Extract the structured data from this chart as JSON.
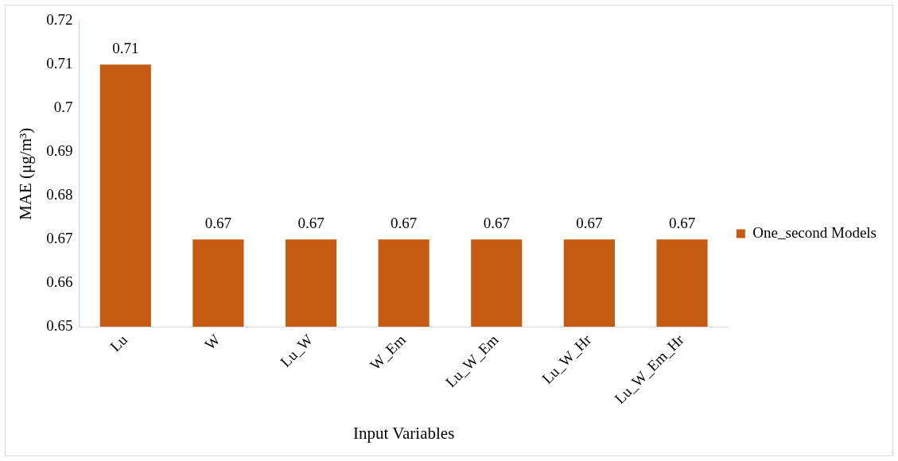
{
  "chart_data": {
    "type": "bar",
    "xlabel": "Input Variables",
    "ylabel": "MAE (μg/m³)",
    "categories": [
      "Lu",
      "W",
      "Lu_W",
      "W_Em",
      "Lu_W_Em",
      "Lu_W_Hr",
      "Lu_W_Em_Hr"
    ],
    "series": [
      {
        "name": "One_second Models",
        "color": "#c55a11",
        "values": [
          0.71,
          0.67,
          0.67,
          0.67,
          0.67,
          0.67,
          0.67
        ]
      }
    ],
    "ylim": [
      0.65,
      0.72
    ],
    "yticks": [
      0.65,
      0.66,
      0.67,
      0.68,
      0.69,
      0.7,
      0.71,
      0.72
    ],
    "data_labels": true,
    "legend": "right",
    "grid": false
  }
}
